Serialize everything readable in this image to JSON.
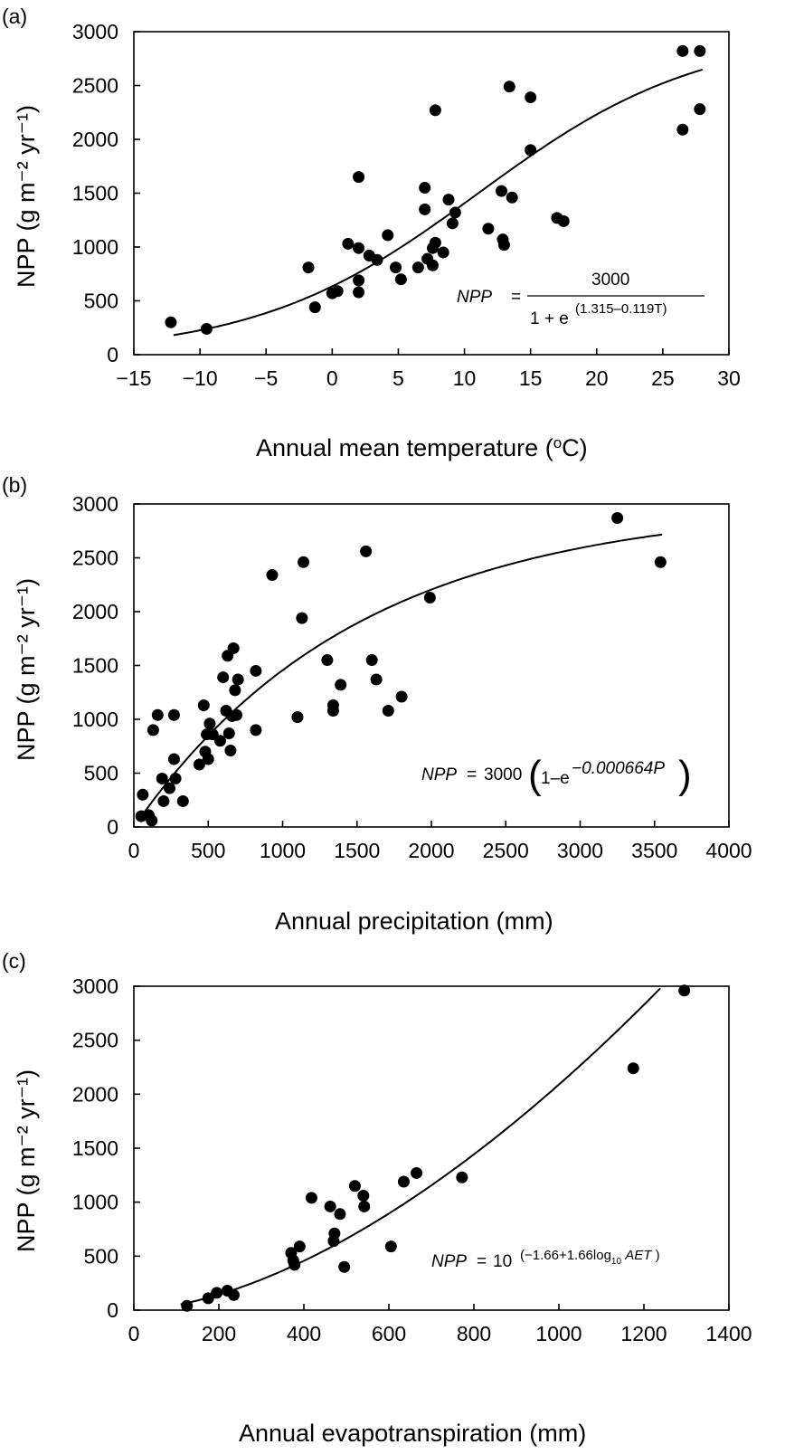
{
  "chart_data": [
    {
      "type": "scatter",
      "panel_label": "(a)",
      "xlabel": "Annual mean temperature (°C)",
      "xlabel_main": "Annual mean temperature (",
      "xlabel_sup": "o",
      "xlabel_end": "C)",
      "ylabel": "NPP (g m⁻² yr⁻¹)",
      "xlim": [
        -15,
        30
      ],
      "ylim": [
        0,
        3000
      ],
      "xticks": [
        -15,
        -10,
        -5,
        0,
        5,
        10,
        15,
        20,
        25,
        30
      ],
      "xtick_labels": [
        "−15",
        "−10",
        "−5",
        "0",
        "5",
        "10",
        "15",
        "20",
        "25",
        "30"
      ],
      "yticks": [
        0,
        500,
        1000,
        1500,
        2000,
        2500,
        3000
      ],
      "ytick_labels": [
        "0",
        "500",
        "1000",
        "1500",
        "2000",
        "2500",
        "3000"
      ],
      "equation": {
        "lhs": "NPP",
        "eq_sign": "=",
        "numerator": "3000",
        "denominator": "1 + e",
        "exponent": "(1.315–0.119T)"
      },
      "fit_curve": "3000 / (1 + exp(1.315 - 0.119*T))",
      "points": [
        [
          -12.2,
          300
        ],
        [
          -9.5,
          240
        ],
        [
          -1.8,
          810
        ],
        [
          -1.3,
          440
        ],
        [
          0,
          570
        ],
        [
          0.4,
          590
        ],
        [
          1.2,
          1030
        ],
        [
          2,
          990
        ],
        [
          2,
          1650
        ],
        [
          2,
          690
        ],
        [
          2,
          580
        ],
        [
          2.8,
          920
        ],
        [
          3.4,
          880
        ],
        [
          4.2,
          1110
        ],
        [
          4.8,
          810
        ],
        [
          5.2,
          700
        ],
        [
          6.5,
          810
        ],
        [
          7,
          1550
        ],
        [
          7,
          1350
        ],
        [
          7.2,
          890
        ],
        [
          7.6,
          830
        ],
        [
          7.6,
          990
        ],
        [
          7.8,
          1040
        ],
        [
          7.8,
          2270
        ],
        [
          8.4,
          950
        ],
        [
          8.8,
          1440
        ],
        [
          9.1,
          1220
        ],
        [
          9.3,
          1320
        ],
        [
          11.8,
          1170
        ],
        [
          12.8,
          1520
        ],
        [
          12.9,
          1070
        ],
        [
          13,
          1020
        ],
        [
          13.4,
          2490
        ],
        [
          13.6,
          1460
        ],
        [
          15,
          2390
        ],
        [
          15,
          1900
        ],
        [
          17,
          1270
        ],
        [
          17.5,
          1240
        ],
        [
          26.5,
          2090
        ],
        [
          26.5,
          2820
        ],
        [
          27.8,
          2820
        ],
        [
          27.8,
          2280
        ]
      ]
    },
    {
      "type": "scatter",
      "panel_label": "(b)",
      "xlabel": "Annual precipitation (mm)",
      "ylabel": "NPP (g m⁻² yr⁻¹)",
      "xlim": [
        0,
        4000
      ],
      "ylim": [
        0,
        3000
      ],
      "xticks": [
        0,
        500,
        1000,
        1500,
        2000,
        2500,
        3000,
        3500,
        4000
      ],
      "xtick_labels": [
        "0",
        "500",
        "1000",
        "1500",
        "2000",
        "2500",
        "3000",
        "3500",
        "4000"
      ],
      "yticks": [
        0,
        500,
        1000,
        1500,
        2000,
        2500,
        3000
      ],
      "ytick_labels": [
        "0",
        "500",
        "1000",
        "1500",
        "2000",
        "2500",
        "3000"
      ],
      "equation": {
        "lhs": "NPP",
        "eq_sign": "=",
        "coef": "3000",
        "base": "1–e",
        "exponent": "−0.000664P"
      },
      "fit_curve": "3000 * (1 - exp(-0.000664*P))",
      "points": [
        [
          50,
          100
        ],
        [
          60,
          300
        ],
        [
          100,
          110
        ],
        [
          120,
          60
        ],
        [
          130,
          900
        ],
        [
          160,
          1040
        ],
        [
          190,
          450
        ],
        [
          200,
          240
        ],
        [
          240,
          360
        ],
        [
          270,
          1040
        ],
        [
          270,
          630
        ],
        [
          280,
          450
        ],
        [
          330,
          240
        ],
        [
          440,
          580
        ],
        [
          470,
          1130
        ],
        [
          480,
          700
        ],
        [
          490,
          860
        ],
        [
          500,
          630
        ],
        [
          510,
          960
        ],
        [
          530,
          860
        ],
        [
          580,
          800
        ],
        [
          600,
          1390
        ],
        [
          620,
          1080
        ],
        [
          630,
          1590
        ],
        [
          640,
          870
        ],
        [
          650,
          710
        ],
        [
          660,
          1030
        ],
        [
          670,
          1660
        ],
        [
          680,
          1270
        ],
        [
          690,
          1040
        ],
        [
          700,
          1370
        ],
        [
          820,
          900
        ],
        [
          820,
          1450
        ],
        [
          930,
          2340
        ],
        [
          1100,
          1020
        ],
        [
          1130,
          1940
        ],
        [
          1140,
          2460
        ],
        [
          1300,
          1550
        ],
        [
          1340,
          1080
        ],
        [
          1340,
          1130
        ],
        [
          1390,
          1320
        ],
        [
          1560,
          2560
        ],
        [
          1600,
          1550
        ],
        [
          1630,
          1370
        ],
        [
          1710,
          1080
        ],
        [
          1800,
          1210
        ],
        [
          1990,
          2130
        ],
        [
          3250,
          2870
        ],
        [
          3540,
          2460
        ]
      ]
    },
    {
      "type": "scatter",
      "panel_label": "(c)",
      "xlabel": "Annual evapotranspiration (mm)",
      "ylabel": "NPP (g m⁻² yr⁻¹)",
      "xlim": [
        0,
        1400
      ],
      "ylim": [
        0,
        3000
      ],
      "xticks": [
        0,
        200,
        400,
        600,
        800,
        1000,
        1200,
        1400
      ],
      "xtick_labels": [
        "0",
        "200",
        "400",
        "600",
        "800",
        "1000",
        "1200",
        "1400"
      ],
      "yticks": [
        0,
        500,
        1000,
        1500,
        2000,
        2500,
        3000
      ],
      "ytick_labels": [
        "0",
        "500",
        "1000",
        "1500",
        "2000",
        "2500",
        "3000"
      ],
      "equation": {
        "lhs": "NPP",
        "eq_sign": "=",
        "base": "10",
        "exponent_open": "(−1.66+1.66log",
        "exponent_sub": "10",
        "exponent_var": "AET",
        "exponent_close": ")"
      },
      "fit_curve": "10^(-1.66 + 1.66*log10(AET))",
      "points": [
        [
          125,
          40
        ],
        [
          175,
          110
        ],
        [
          195,
          160
        ],
        [
          220,
          180
        ],
        [
          235,
          140
        ],
        [
          370,
          530
        ],
        [
          375,
          460
        ],
        [
          378,
          420
        ],
        [
          390,
          590
        ],
        [
          418,
          1040
        ],
        [
          462,
          960
        ],
        [
          470,
          640
        ],
        [
          472,
          710
        ],
        [
          485,
          890
        ],
        [
          495,
          400
        ],
        [
          520,
          1150
        ],
        [
          540,
          1060
        ],
        [
          542,
          960
        ],
        [
          605,
          590
        ],
        [
          635,
          1190
        ],
        [
          665,
          1270
        ],
        [
          772,
          1230
        ],
        [
          1175,
          2240
        ],
        [
          1295,
          2960
        ]
      ]
    }
  ]
}
